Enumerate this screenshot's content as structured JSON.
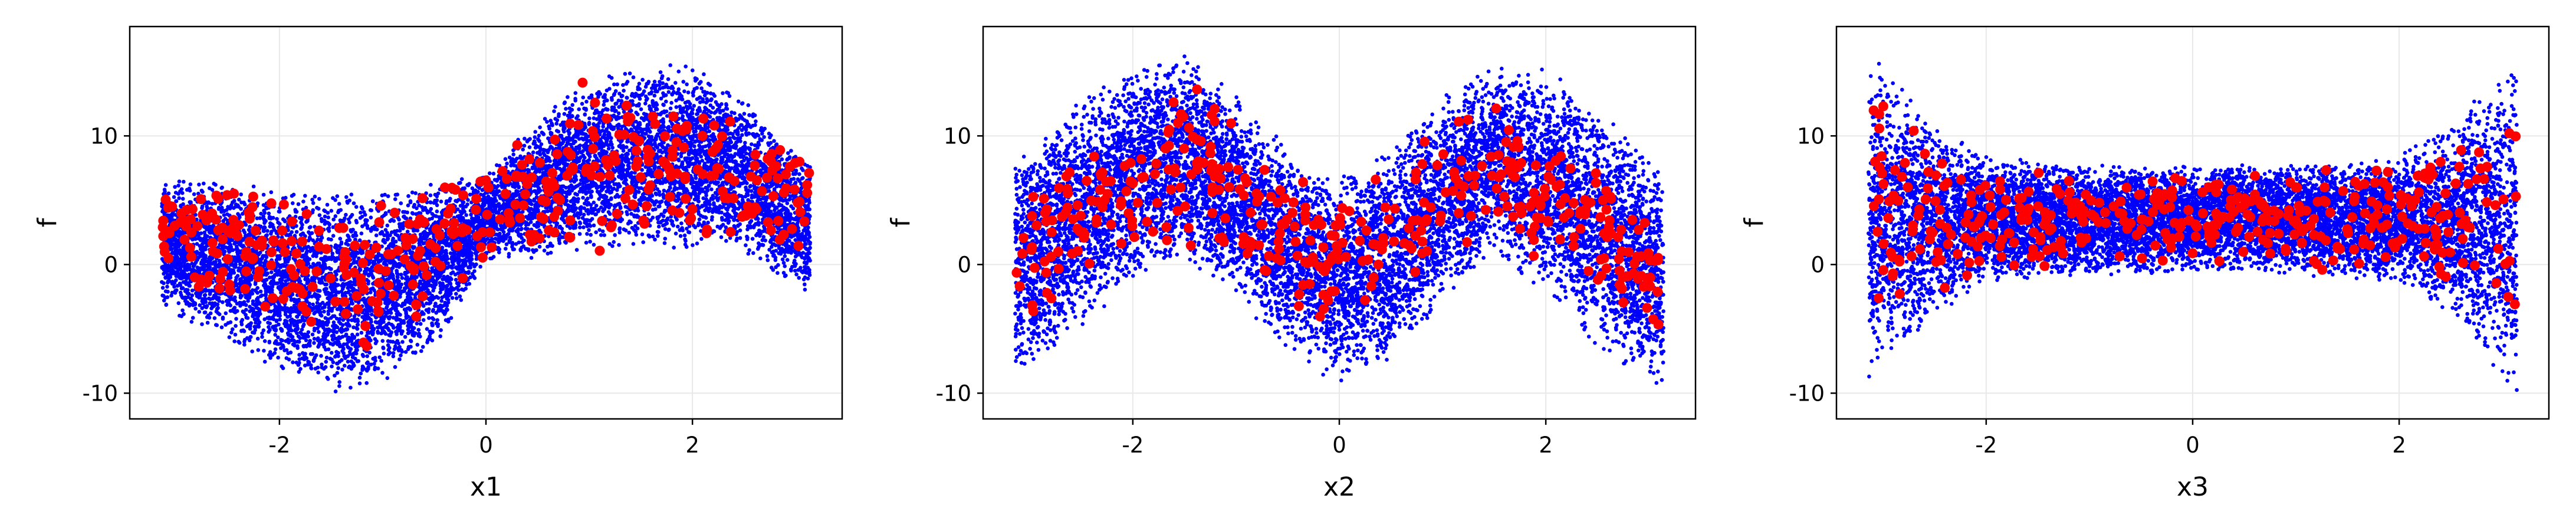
{
  "colors": {
    "background": "#ffffff",
    "grid": "#e8e8e8",
    "frame": "#000000",
    "samples": "#0000ff",
    "highlighted": "#ff0000"
  },
  "chart_data": [
    {
      "type": "scatter",
      "title": "",
      "xlabel": "x1",
      "ylabel": "f",
      "xlim": [
        -3.45,
        3.45
      ],
      "ylim": [
        -12.0,
        18.5
      ],
      "xticks": [
        "-2",
        "0",
        "2"
      ],
      "yticks": [
        "-10",
        "0",
        "10"
      ],
      "grid": true,
      "legend": "none",
      "pattern": "x1",
      "series": [
        {
          "marker": "small dot",
          "color": "blue",
          "approx_count": 10000,
          "envelope": {
            "x": [
              -3.14,
              -2.5,
              -2.0,
              -1.5,
              -1.0,
              -0.5,
              0.0,
              0.5,
              1.0,
              1.5,
              2.0,
              2.5,
              3.14
            ],
            "upper": [
              6.9,
              6.4,
              6.0,
              5.8,
              5.9,
              6.3,
              7.2,
              11.5,
              14.5,
              15.5,
              15.8,
              13.0,
              8.0
            ],
            "lower": [
              -3.5,
              -6.0,
              -8.5,
              -10.5,
              -9.5,
              -6.5,
              0.0,
              0.5,
              1.0,
              1.2,
              1.0,
              0.8,
              -2.5
            ]
          }
        },
        {
          "marker": "large dot",
          "color": "red",
          "approx_count": 400,
          "envelope": {
            "x": [
              -3.14,
              -2.0,
              -1.0,
              0.0,
              1.0,
              2.0,
              3.14
            ],
            "upper": [
              6.5,
              6.0,
              6.0,
              7.0,
              15.5,
              13.5,
              8.0
            ],
            "lower": [
              -1.0,
              -5.5,
              -7.5,
              0.0,
              1.0,
              1.0,
              0.5
            ]
          }
        }
      ]
    },
    {
      "type": "scatter",
      "title": "",
      "xlabel": "x2",
      "ylabel": "f",
      "xlim": [
        -3.45,
        3.45
      ],
      "ylim": [
        -12.0,
        18.5
      ],
      "xticks": [
        "-2",
        "0",
        "2"
      ],
      "yticks": [
        "-10",
        "0",
        "10"
      ],
      "grid": true,
      "legend": "none",
      "pattern": "x2",
      "series": [
        {
          "marker": "small dot",
          "color": "blue",
          "approx_count": 10000,
          "envelope": {
            "x": [
              -3.14,
              -2.5,
              -2.0,
              -1.5,
              -1.0,
              -0.5,
              0.0,
              0.5,
              1.0,
              1.5,
              2.0,
              2.5,
              3.14
            ],
            "upper": [
              8.5,
              13.0,
              15.5,
              16.5,
              13.5,
              9.0,
              7.0,
              9.0,
              13.5,
              16.0,
              15.5,
              12.5,
              8.0
            ],
            "lower": [
              -9.0,
              -5.0,
              -1.5,
              0.5,
              -2.5,
              -7.0,
              -9.5,
              -7.5,
              -3.0,
              0.5,
              -2.5,
              -6.5,
              -10.5
            ]
          }
        },
        {
          "marker": "large dot",
          "color": "red",
          "approx_count": 400,
          "envelope": {
            "x": [
              -3.14,
              -2.0,
              -1.5,
              -0.5,
              0.0,
              0.5,
              1.5,
              2.5,
              3.14
            ],
            "upper": [
              5.0,
              11.5,
              15.5,
              8.0,
              5.0,
              9.0,
              13.0,
              9.0,
              3.0
            ],
            "lower": [
              -5.5,
              1.0,
              1.0,
              -4.0,
              -5.0,
              -3.5,
              1.5,
              -2.5,
              -6.0
            ]
          }
        }
      ]
    },
    {
      "type": "scatter",
      "title": "",
      "xlabel": "x3",
      "ylabel": "f",
      "xlim": [
        -3.45,
        3.45
      ],
      "ylim": [
        -12.0,
        18.5
      ],
      "xticks": [
        "-2",
        "0",
        "2"
      ],
      "yticks": [
        "-10",
        "0",
        "10"
      ],
      "grid": true,
      "legend": "none",
      "pattern": "x3",
      "series": [
        {
          "marker": "small dot",
          "color": "blue",
          "approx_count": 10000,
          "envelope": {
            "x": [
              -3.14,
              -2.5,
              -2.0,
              -1.0,
              0.0,
              1.0,
              2.0,
              2.5,
              3.14
            ],
            "upper": [
              16.8,
              11.0,
              8.5,
              7.8,
              7.8,
              7.8,
              8.5,
              11.0,
              15.8
            ],
            "lower": [
              -9.5,
              -4.0,
              -1.5,
              -0.8,
              -0.8,
              -0.8,
              -1.5,
              -4.0,
              -10.5
            ]
          }
        },
        {
          "marker": "large dot",
          "color": "red",
          "approx_count": 400,
          "envelope": {
            "x": [
              -3.14,
              -2.5,
              -2.0,
              0.0,
              2.0,
              2.5,
              3.14
            ],
            "upper": [
              15.5,
              11.0,
              8.0,
              7.5,
              8.0,
              10.5,
              13.5
            ],
            "lower": [
              -6.0,
              -4.5,
              -1.0,
              -0.5,
              -1.0,
              -3.5,
              -8.0
            ]
          }
        }
      ]
    }
  ]
}
